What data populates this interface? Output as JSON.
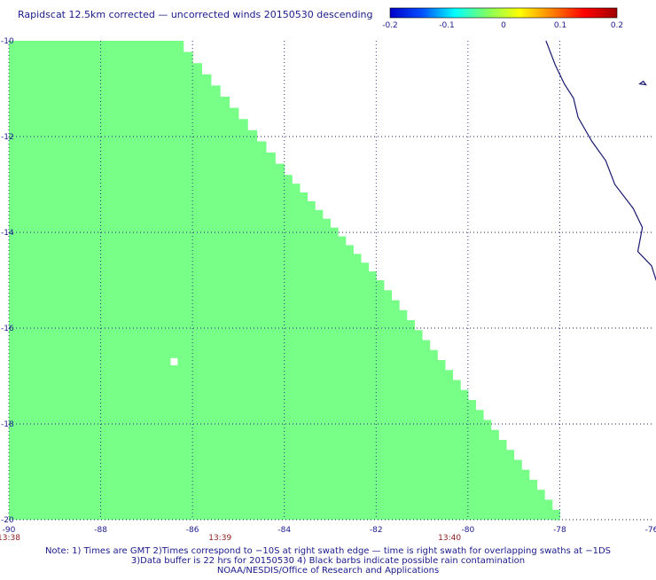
{
  "title": "Rapidscat 12.5km corrected — uncorrected winds 20150530 descending",
  "colorbar": {
    "ticks": [
      "-0.2",
      "-0.1",
      "0",
      "0.1",
      "0.2"
    ],
    "values": [
      -0.2,
      -0.1,
      0,
      0.1,
      0.2
    ],
    "colors": [
      "#0000c8",
      "#0050ff",
      "#00ffff",
      "#80ff60",
      "#ffff00",
      "#ff8000",
      "#ff0000",
      "#a00000"
    ]
  },
  "chart_data": {
    "type": "heatmap",
    "xlim": [
      -90,
      -76
    ],
    "ylim": [
      -20,
      -10
    ],
    "x_ticks": [
      "-90",
      "-88",
      "-86",
      "-84",
      "-82",
      "-80",
      "-78",
      "-76"
    ],
    "x_tick_values": [
      -90,
      -88,
      -86,
      -84,
      -82,
      -80,
      -78,
      -76
    ],
    "y_ticks": [
      "-10",
      "-12",
      "-14",
      "-16",
      "-18",
      "-20"
    ],
    "y_tick_values": [
      -10,
      -12,
      -14,
      -16,
      -18,
      -20
    ],
    "grid": true,
    "swath_value": 0.02,
    "swath_color": "#77ff88",
    "swath_edge": [
      [
        -86.4,
        -10.0
      ],
      [
        -84.0,
        -12.8
      ],
      [
        -82.0,
        -15.0
      ],
      [
        -80.0,
        -17.5
      ],
      [
        -78.0,
        -20.0
      ]
    ],
    "missing_cells": [
      [
        -86.4,
        -16.7
      ]
    ],
    "times": [
      {
        "label": "13:38",
        "lon": -90
      },
      {
        "label": "13:39",
        "lon": -85.4
      },
      {
        "label": "13:40",
        "lon": -80.4
      }
    ],
    "coastline": [
      [
        -78.3,
        -10.0
      ],
      [
        -78.1,
        -10.5
      ],
      [
        -77.9,
        -10.9
      ],
      [
        -77.7,
        -11.2
      ],
      [
        -77.6,
        -11.6
      ],
      [
        -77.3,
        -12.1
      ],
      [
        -77.0,
        -12.5
      ],
      [
        -76.8,
        -13.0
      ],
      [
        -76.4,
        -13.5
      ],
      [
        -76.2,
        -13.9
      ],
      [
        -76.3,
        -14.4
      ],
      [
        -76.0,
        -14.7
      ],
      [
        -75.9,
        -15.0
      ],
      [
        -75.7,
        -15.2
      ],
      [
        -75.4,
        -15.5
      ]
    ],
    "island": [
      -76.2,
      -10.9
    ]
  },
  "notes": [
    "Note: 1) Times are GMT 2)Times correspond to −10S at right swath edge — time is right swath for overlapping swaths at −1DS",
    "3)Data buffer is 22 hrs for 20150530 4) Black barbs indicate possible rain contamination",
    "NOAA/NESDIS/Office of Research and Applications"
  ]
}
